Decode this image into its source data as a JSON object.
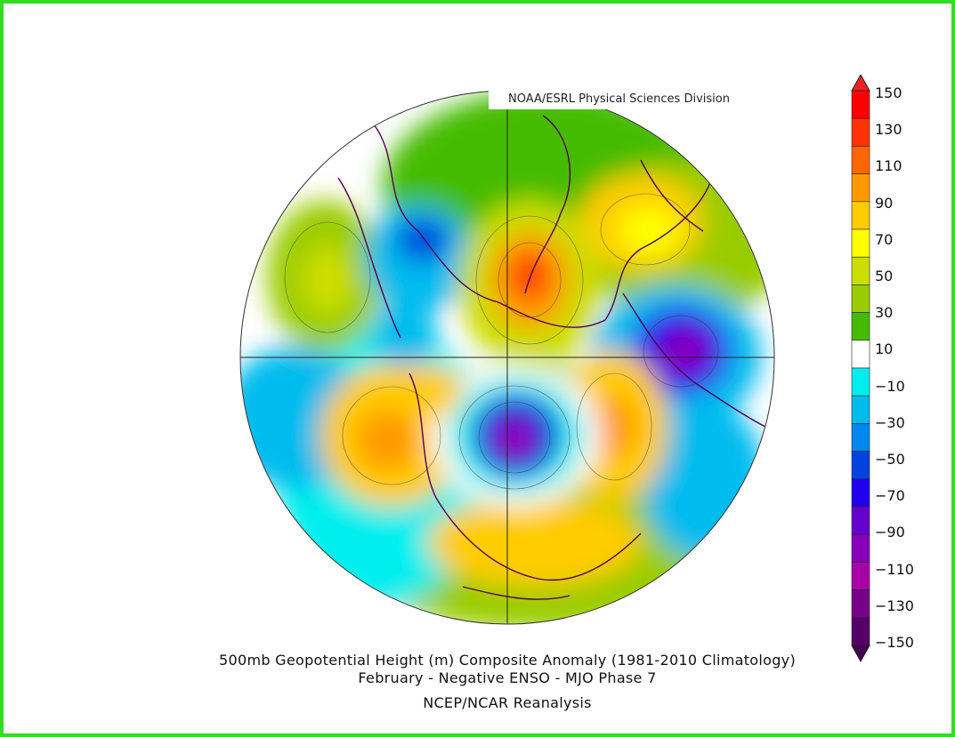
{
  "credit": "NOAA/ESRL Physical Sciences Division",
  "caption": {
    "line1": "500mb Geopotential Height (m) Composite Anomaly (1981-2010 Climatology)",
    "line2": "February - Negative ENSO - MJO Phase 7",
    "line3": "NCEP/NCAR Reanalysis"
  },
  "colorbar": {
    "ticks": [
      "150",
      "130",
      "110",
      "90",
      "70",
      "50",
      "30",
      "10",
      "−10",
      "−30",
      "−50",
      "−70",
      "−90",
      "−110",
      "−130",
      "−150"
    ],
    "colors": [
      "#ff0000",
      "#ff3300",
      "#ff6600",
      "#ff9900",
      "#ffcc00",
      "#ffff00",
      "#ccdd00",
      "#99cc00",
      "#44bb00",
      "#ffffff",
      "#00eeee",
      "#00bbee",
      "#0088ee",
      "#0044dd",
      "#2200ee",
      "#6600cc",
      "#8800bb",
      "#aa00aa",
      "#770088",
      "#550066"
    ]
  },
  "map": {
    "features": [
      {
        "name": "anomaly-positive-north-pacific",
        "value": 50
      },
      {
        "name": "anomaly-negative-alaska",
        "value": -50
      },
      {
        "name": "anomaly-positive-greenland",
        "value": 110
      },
      {
        "name": "anomaly-positive-scandinavia-russia",
        "value": 70
      },
      {
        "name": "anomaly-negative-east-asia",
        "value": -90
      },
      {
        "name": "anomaly-positive-north-america-west",
        "value": 110
      },
      {
        "name": "anomaly-negative-eastern-north-america",
        "value": -110
      },
      {
        "name": "anomaly-positive-atlantic",
        "value": 90
      },
      {
        "name": "anomaly-positive-eastern-europe",
        "value": 70
      },
      {
        "name": "anomaly-negative-central-asia",
        "value": -30
      }
    ]
  }
}
